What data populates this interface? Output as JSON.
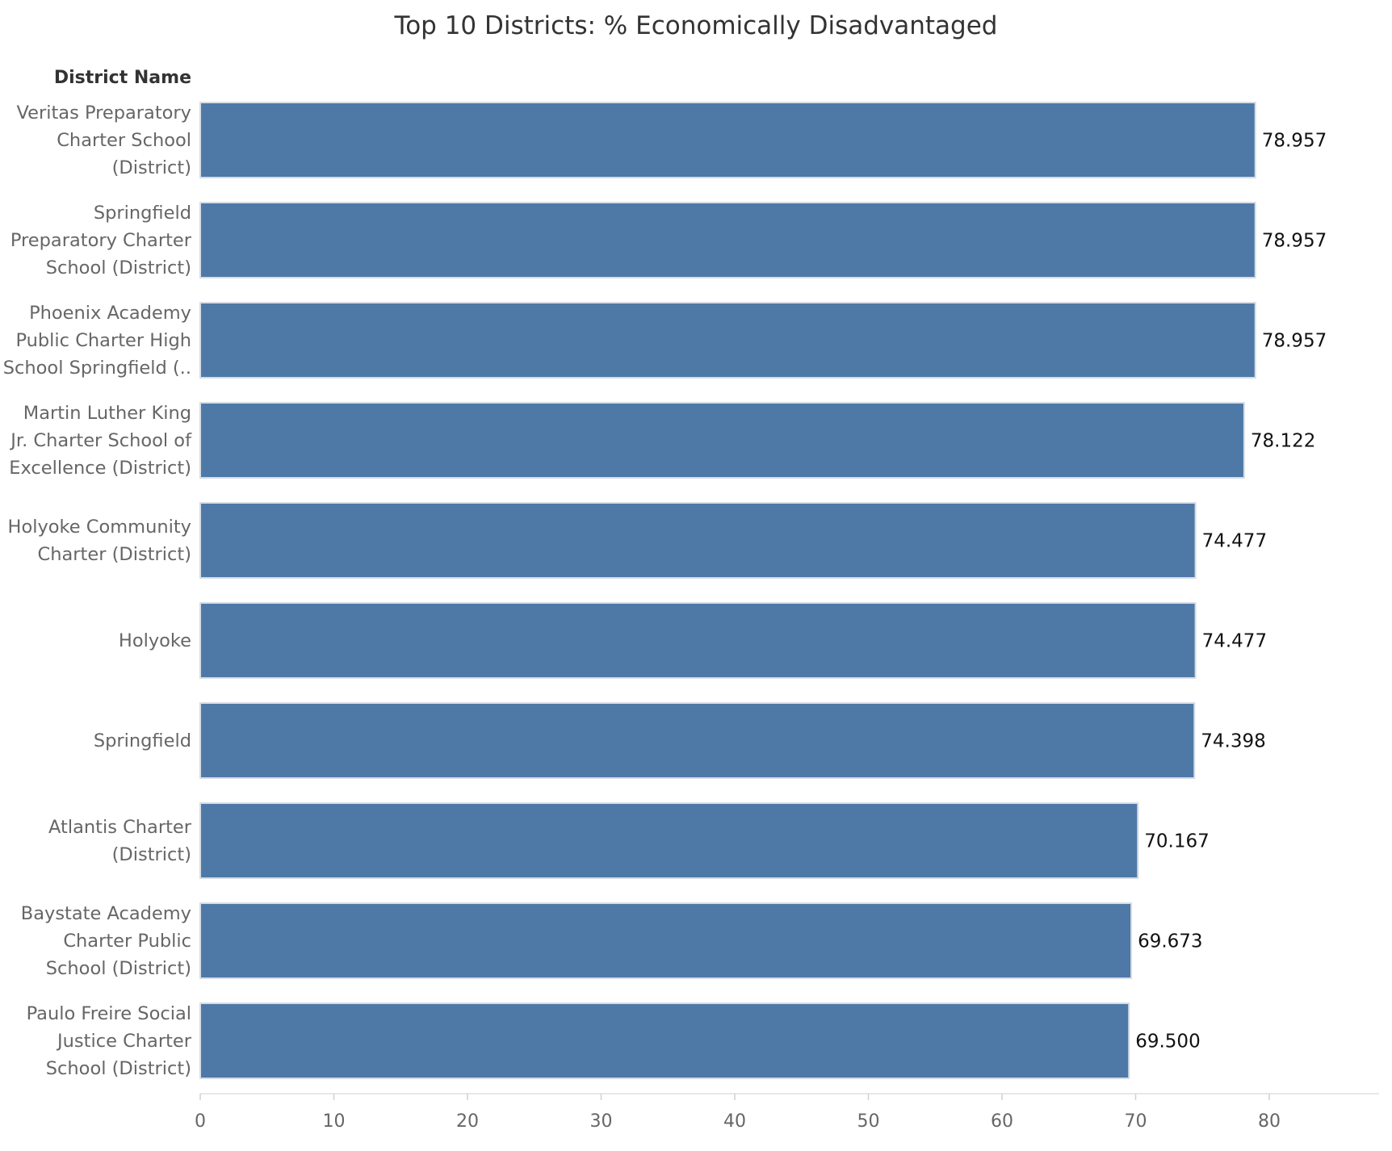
{
  "chart_data": {
    "type": "bar",
    "orientation": "horizontal",
    "title": "Top 10 Districts: % Economically Disadvantaged",
    "row_header": "District Name",
    "categories": [
      [
        "Veritas Preparatory",
        "Charter School",
        "(District)"
      ],
      [
        "Springfield",
        "Preparatory Charter",
        "School (District)"
      ],
      [
        "Phoenix Academy",
        "Public Charter High",
        "School Springfield (.."
      ],
      [
        "Martin Luther King",
        "Jr. Charter School of",
        "Excellence (District)"
      ],
      [
        "Holyoke Community",
        "Charter (District)"
      ],
      [
        "Holyoke"
      ],
      [
        "Springfield"
      ],
      [
        "Atlantis Charter",
        "(District)"
      ],
      [
        "Baystate Academy",
        "Charter Public",
        "School (District)"
      ],
      [
        "Paulo Freire Social",
        "Justice Charter",
        "School (District)"
      ]
    ],
    "values": [
      78.957,
      78.957,
      78.957,
      78.122,
      74.477,
      74.477,
      74.398,
      70.167,
      69.673,
      69.5
    ],
    "value_labels": [
      "78.957",
      "78.957",
      "78.957",
      "78.122",
      "74.477",
      "74.477",
      "74.398",
      "70.167",
      "69.673",
      "69.500"
    ],
    "xlim": [
      0,
      88
    ],
    "x_ticks": [
      0,
      10,
      20,
      30,
      40,
      50,
      60,
      70,
      80
    ],
    "x_tick_labels": [
      "0",
      "10",
      "20",
      "30",
      "40",
      "50",
      "60",
      "70",
      "80"
    ],
    "xlabel": "",
    "ylabel": "",
    "grid": false,
    "bar_color": "#4e79a7",
    "bar_edge_color": "#d7dde5"
  }
}
